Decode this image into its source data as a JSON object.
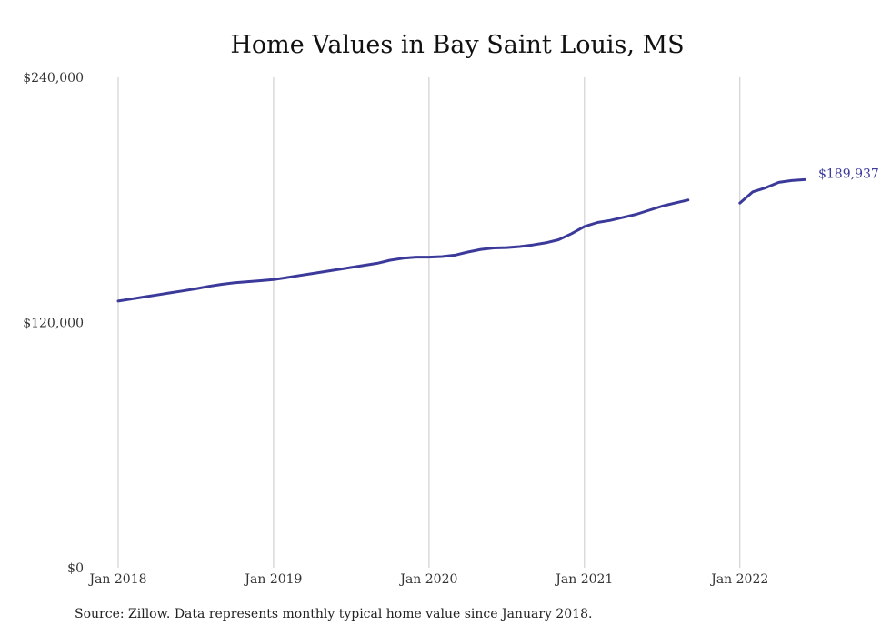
{
  "chart_data": {
    "type": "line",
    "title": "Home Values in Bay Saint Louis, MS",
    "xlabel": "",
    "ylabel": "",
    "ylim": [
      0,
      240000
    ],
    "ytick_values": [
      0,
      120000,
      240000
    ],
    "ytick_labels": [
      "$0",
      "$120,000",
      "$240,000"
    ],
    "xtick_labels": [
      "Jan 2018",
      "Jan 2019",
      "Jan 2020",
      "Jan 2021",
      "Jan 2022"
    ],
    "xtick_months": [
      0,
      12,
      24,
      36,
      48
    ],
    "grid": "vertical",
    "line_color": "#3b3a9a",
    "series": [
      {
        "x_months": [
          0,
          1,
          2,
          3,
          4,
          5,
          6,
          7,
          8,
          9,
          10,
          11,
          12,
          13,
          14,
          15,
          16,
          17,
          18,
          19,
          20,
          21,
          22,
          23,
          24,
          25,
          26,
          27,
          28,
          29,
          30,
          31,
          32,
          33,
          34,
          35,
          36,
          37,
          38,
          39,
          40,
          41,
          42,
          43,
          44,
          45,
          46,
          47,
          null,
          48,
          49,
          50,
          51,
          52,
          53
        ],
        "values": [
          130500,
          131500,
          132500,
          133500,
          134500,
          135500,
          136500,
          137700,
          138700,
          139500,
          140000,
          140500,
          141000,
          142000,
          143000,
          144000,
          145000,
          146000,
          147000,
          148000,
          149000,
          150500,
          151500,
          152000,
          152000,
          152300,
          153000,
          154500,
          155800,
          156500,
          156700,
          157200,
          158000,
          159000,
          160500,
          163500,
          167000,
          169000,
          170000,
          171500,
          173000,
          175000,
          177000,
          178500,
          180000,
          null,
          null,
          null,
          null,
          178500,
          184000,
          186000,
          188600,
          189500,
          189937
        ]
      }
    ],
    "end_label": "$189,937",
    "source": "Source: Zillow. Data represents monthly typical home value since January 2018."
  }
}
